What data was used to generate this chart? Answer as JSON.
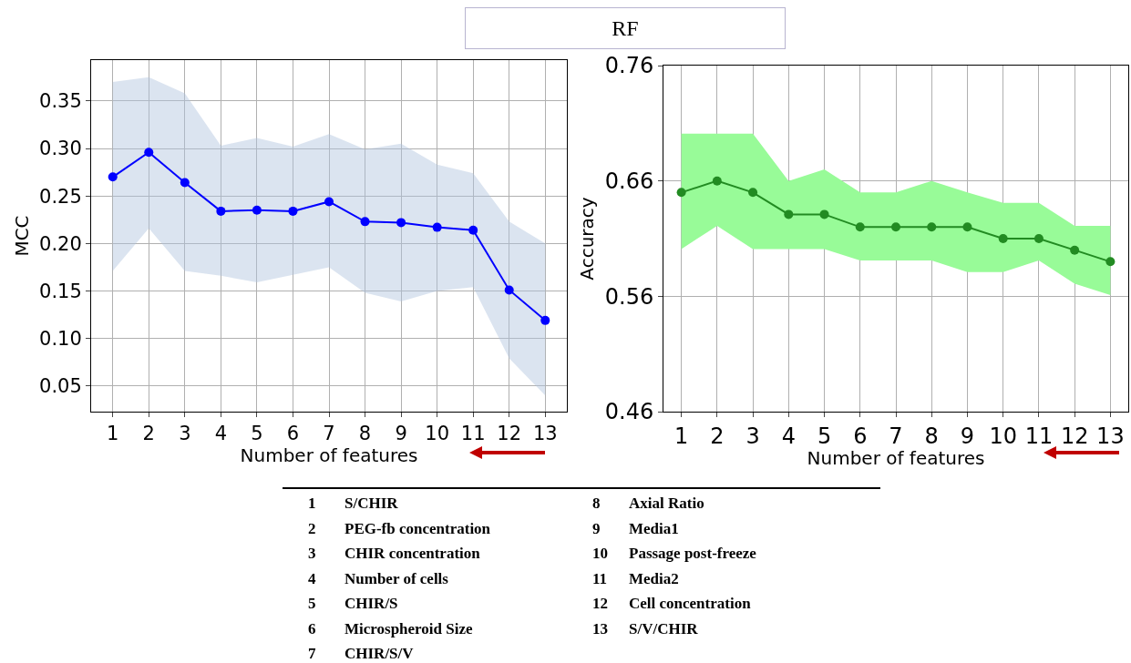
{
  "chart_data": [
    {
      "type": "other",
      "title": "RF"
    },
    {
      "type": "line",
      "xlabel": "Number of features",
      "ylabel": "MCC",
      "x": [
        1,
        2,
        3,
        4,
        5,
        6,
        7,
        8,
        9,
        10,
        11,
        12,
        13
      ],
      "series": [
        {
          "color": "#0000ff",
          "values": [
            0.27,
            0.296,
            0.264,
            0.234,
            0.235,
            0.234,
            0.244,
            0.223,
            0.222,
            0.217,
            0.214,
            0.151,
            0.119
          ],
          "lower": [
            0.171,
            0.216,
            0.171,
            0.166,
            0.159,
            0.167,
            0.175,
            0.148,
            0.139,
            0.15,
            0.154,
            0.079,
            0.04
          ],
          "upper": [
            0.37,
            0.375,
            0.358,
            0.303,
            0.311,
            0.302,
            0.315,
            0.299,
            0.305,
            0.283,
            0.274,
            0.223,
            0.2
          ]
        }
      ],
      "xlim": [
        0.4,
        13.6
      ],
      "xticks": [
        1,
        2,
        3,
        4,
        5,
        6,
        7,
        8,
        9,
        10,
        11,
        12,
        13
      ],
      "ylim": [
        0.023,
        0.393
      ],
      "yticks": [
        {
          "value": 0.05,
          "label": "0.05"
        },
        {
          "value": 0.1,
          "label": "0.10"
        },
        {
          "value": 0.15,
          "label": "0.15"
        },
        {
          "value": 0.2,
          "label": "0.20"
        },
        {
          "value": 0.25,
          "label": "0.25"
        },
        {
          "value": 0.3,
          "label": "0.30"
        },
        {
          "value": 0.35,
          "label": "0.35"
        }
      ],
      "grid": true,
      "marker": "circle",
      "line_style": "solid"
    },
    {
      "type": "line",
      "xlabel": "Number of features",
      "ylabel": "Accuracy",
      "x": [
        1,
        2,
        3,
        4,
        5,
        6,
        7,
        8,
        9,
        10,
        11,
        12,
        13
      ],
      "series": [
        {
          "color": "#228b22",
          "values": [
            0.65,
            0.66,
            0.65,
            0.631,
            0.631,
            0.62,
            0.62,
            0.62,
            0.62,
            0.61,
            0.61,
            0.6,
            0.59
          ],
          "lower": [
            0.601,
            0.621,
            0.601,
            0.601,
            0.601,
            0.591,
            0.591,
            0.591,
            0.581,
            0.581,
            0.591,
            0.571,
            0.561
          ],
          "upper": [
            0.701,
            0.701,
            0.701,
            0.66,
            0.67,
            0.65,
            0.65,
            0.66,
            0.65,
            0.641,
            0.641,
            0.621,
            0.621
          ]
        }
      ],
      "xlim": [
        0.5,
        13.5
      ],
      "xticks": [
        1,
        2,
        3,
        4,
        5,
        6,
        7,
        8,
        9,
        10,
        11,
        12,
        13
      ],
      "ylim": [
        0.46,
        0.76
      ],
      "yticks": [
        0.46,
        0.56,
        0.66,
        0.76
      ],
      "grid": true,
      "marker": "circle",
      "line_style": "solid"
    },
    {
      "type": "other",
      "annotations": [
        "1 S/CHIR",
        "2 PEG-fb concentration",
        "3 CHIR concentration",
        "4 Number of cells",
        "5 CHIR/S",
        "6 Microspheroid Size",
        "7 CHIR/S/V",
        "8 Axial Ratio",
        "9 Media1",
        "10 Passage post-freeze",
        "11 Media2",
        "12 Cell concentration",
        "13 S/V/CHIR"
      ]
    }
  ]
}
